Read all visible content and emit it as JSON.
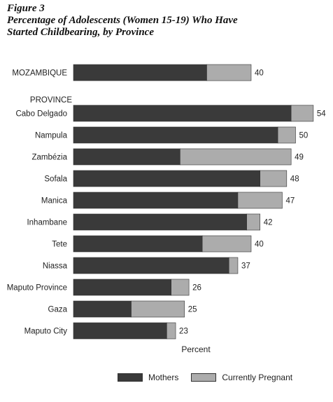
{
  "figure": {
    "label": "Figure 3",
    "title_line1": "Percentage of Adolescents (Women 15-19) Who Have",
    "title_line2": "Started Childbearing, by Province"
  },
  "colors": {
    "mothers": "#3a3a3a",
    "pregnant": "#acacac",
    "outline": "#333333"
  },
  "chart_data": {
    "type": "bar",
    "orientation": "horizontal",
    "stacked": true,
    "title": "Percentage of Adolescents (Women 15-19) Who Have Started Childbearing, by Province",
    "xlabel": "Percent",
    "section_label": "PROVINCE",
    "xlim": [
      0,
      60
    ],
    "categories": [
      "MOZAMBIQUE",
      "Cabo Delgado",
      "Nampula",
      "Zambézia",
      "Sofala",
      "Manica",
      "Inhambane",
      "Tete",
      "Niassa",
      "Maputo Province",
      "Gaza",
      "Maputo City"
    ],
    "series": [
      {
        "name": "Mothers",
        "values": [
          30,
          49,
          46,
          24,
          42,
          37,
          39,
          29,
          35,
          22,
          13,
          21
        ]
      },
      {
        "name": "Currently Pregnant",
        "values": [
          10,
          5,
          4,
          25,
          6,
          10,
          3,
          11,
          2,
          4,
          12,
          2
        ]
      }
    ],
    "totals": [
      40,
      54,
      50,
      49,
      48,
      47,
      42,
      40,
      37,
      26,
      25,
      23
    ],
    "grid": false,
    "legend_position": "bottom"
  }
}
